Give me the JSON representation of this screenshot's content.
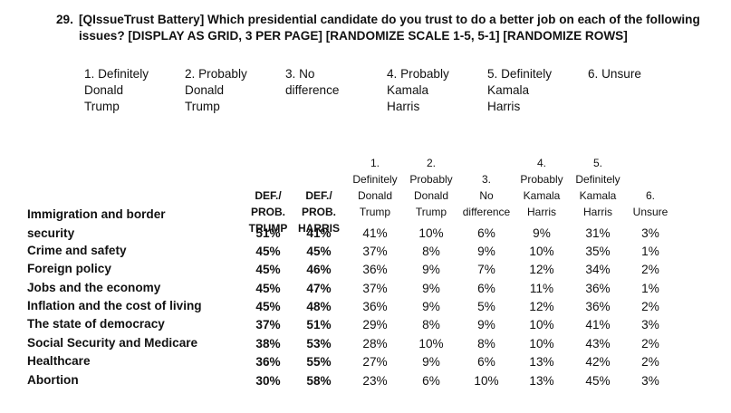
{
  "question": {
    "number": "29.",
    "text": "[QIssueTrust Battery] Which presidential candidate do you trust to do a better job on each of the following issues? [DISPLAY AS GRID, 3 PER PAGE] [RANDOMIZE SCALE 1-5, 5-1] [RANDOMIZE ROWS]"
  },
  "scale": [
    [
      "1. Definitely",
      "Donald",
      "Trump"
    ],
    [
      "2. Probably",
      "Donald",
      "Trump"
    ],
    [
      "3. No",
      "difference"
    ],
    [
      "4. Probably",
      "Kamala",
      "Harris"
    ],
    [
      "5. Definitely",
      "Kamala",
      "Harris"
    ],
    [
      "6. Unsure"
    ]
  ],
  "table": {
    "headers": [
      [
        "",
        "",
        "",
        "DEF./",
        "PROB.",
        "TRUMP"
      ],
      [
        "",
        "",
        "",
        "DEF./",
        "PROB.",
        "HARRIS"
      ],
      [
        "",
        "1.",
        "Definitely",
        "Donald",
        "Trump"
      ],
      [
        "",
        "2.",
        "Probably",
        "Donald",
        "Trump"
      ],
      [
        "",
        "",
        "3.",
        "No",
        "difference"
      ],
      [
        "",
        "4.",
        "Probably",
        "Kamala",
        "Harris"
      ],
      [
        "",
        "5.",
        "Definitely",
        "Kamala",
        "Harris"
      ],
      [
        "",
        "",
        "",
        "6.",
        "Unsure"
      ]
    ],
    "rows": [
      {
        "label": [
          "Immigration and border",
          "security"
        ],
        "values": [
          "51%",
          "41%",
          "41%",
          "10%",
          "6%",
          "9%",
          "31%",
          "3%"
        ]
      },
      {
        "label": [
          "Crime and safety"
        ],
        "values": [
          "45%",
          "45%",
          "37%",
          "8%",
          "9%",
          "10%",
          "35%",
          "1%"
        ]
      },
      {
        "label": [
          "Foreign policy"
        ],
        "values": [
          "45%",
          "46%",
          "36%",
          "9%",
          "7%",
          "12%",
          "34%",
          "2%"
        ]
      },
      {
        "label": [
          "Jobs and the economy"
        ],
        "values": [
          "45%",
          "47%",
          "37%",
          "9%",
          "6%",
          "11%",
          "36%",
          "1%"
        ]
      },
      {
        "label": [
          "Inflation and the cost of living"
        ],
        "values": [
          "45%",
          "48%",
          "36%",
          "9%",
          "5%",
          "12%",
          "36%",
          "2%"
        ]
      },
      {
        "label": [
          "The state of democracy"
        ],
        "values": [
          "37%",
          "51%",
          "29%",
          "8%",
          "9%",
          "10%",
          "41%",
          "3%"
        ]
      },
      {
        "label": [
          "Social Security and Medicare"
        ],
        "values": [
          "38%",
          "53%",
          "28%",
          "10%",
          "8%",
          "10%",
          "43%",
          "2%"
        ]
      },
      {
        "label": [
          "Healthcare"
        ],
        "values": [
          "36%",
          "55%",
          "27%",
          "9%",
          "6%",
          "13%",
          "42%",
          "2%"
        ]
      },
      {
        "label": [
          "Abortion"
        ],
        "values": [
          "30%",
          "58%",
          "23%",
          "6%",
          "10%",
          "13%",
          "45%",
          "3%"
        ]
      }
    ]
  }
}
